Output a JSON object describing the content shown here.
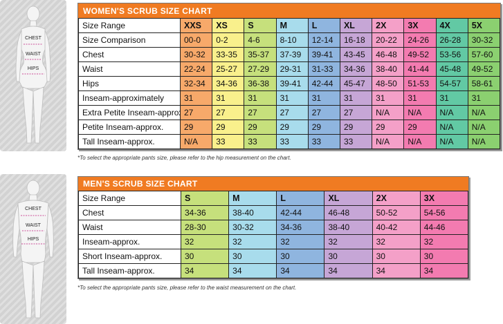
{
  "women": {
    "title": "WOMEN'S SCRUB SIZE CHART",
    "figure": {
      "chest": "CHEST",
      "waist": "WAIST",
      "hips": "HIPS"
    },
    "sizes": [
      "XXS",
      "XS",
      "S",
      "M",
      "L",
      "XL",
      "2X",
      "3X",
      "4X",
      "5X"
    ],
    "colors": [
      "#f7a96a",
      "#f9f08c",
      "#c6e07c",
      "#a8dcec",
      "#8fb5df",
      "#c6a6d6",
      "#f4a0c8",
      "#f37bb0",
      "#62c9a4",
      "#8bd070"
    ],
    "rows": [
      {
        "label": "Size Range",
        "values": [
          "XXS",
          "XS",
          "S",
          "M",
          "L",
          "XL",
          "2X",
          "3X",
          "4X",
          "5X"
        ]
      },
      {
        "label": "Size Comparison",
        "values": [
          "00-0",
          "0-2",
          "4-6",
          "8-10",
          "12-14",
          "16-18",
          "20-22",
          "24-26",
          "26-28",
          "30-32"
        ]
      },
      {
        "label": "Chest",
        "values": [
          "30-32",
          "33-35",
          "35-37",
          "37-39",
          "39-41",
          "43-45",
          "46-48",
          "49-52",
          "53-56",
          "57-60"
        ]
      },
      {
        "label": "Waist",
        "values": [
          "22-24",
          "25-27",
          "27-29",
          "29-31",
          "31-33",
          "34-36",
          "38-40",
          "41-44",
          "45-48",
          "49-52"
        ]
      },
      {
        "label": "Hips",
        "values": [
          "32-34",
          "34-36",
          "36-38",
          "39-41",
          "42-44",
          "45-47",
          "48-50",
          "51-53",
          "54-57",
          "58-61"
        ]
      },
      {
        "label": "Inseam-approximately",
        "values": [
          "31",
          "31",
          "31",
          "31",
          "31",
          "31",
          "31",
          "31",
          "31",
          "31"
        ]
      },
      {
        "label": "Extra Petite Inseam-approx.",
        "values": [
          "27",
          "27",
          "27",
          "27",
          "27",
          "27",
          "N/A",
          "N/A",
          "N/A",
          "N/A"
        ]
      },
      {
        "label": "Petite Inseam-approx.",
        "values": [
          "29",
          "29",
          "29",
          "29",
          "29",
          "29",
          "29",
          "29",
          "N/A",
          "N/A"
        ]
      },
      {
        "label": "Tall Inseam-approx.",
        "values": [
          "N/A",
          "33",
          "33",
          "33",
          "33",
          "33",
          "N/A",
          "N/A",
          "N/A",
          "N/A"
        ]
      }
    ],
    "note": "*To select the appropriate pants size, please refer to the hip measurement on the chart."
  },
  "men": {
    "title": "MEN'S SCRUB SIZE CHART",
    "figure": {
      "chest": "CHEST",
      "waist": "WAIST",
      "hips": "HIPS"
    },
    "sizes": [
      "S",
      "M",
      "L",
      "XL",
      "2X",
      "3X"
    ],
    "colors": [
      "#c6e07c",
      "#a8dcec",
      "#8fb5df",
      "#c6a6d6",
      "#f4a0c8",
      "#f37bb0"
    ],
    "rows": [
      {
        "label": "Size Range",
        "values": [
          "S",
          "M",
          "L",
          "XL",
          "2X",
          "3X"
        ]
      },
      {
        "label": "Chest",
        "values": [
          "34-36",
          "38-40",
          "42-44",
          "46-48",
          "50-52",
          "54-56"
        ]
      },
      {
        "label": "Waist",
        "values": [
          "28-30",
          "30-32",
          "34-36",
          "38-40",
          "40-42",
          "44-46"
        ]
      },
      {
        "label": "Inseam-approx.",
        "values": [
          "32",
          "32",
          "32",
          "32",
          "32",
          "32"
        ]
      },
      {
        "label": "Short Inseam-approx.",
        "values": [
          "30",
          "30",
          "30",
          "30",
          "30",
          "30"
        ]
      },
      {
        "label": "Tall Inseam-approx.",
        "values": [
          "34",
          "34",
          "34",
          "34",
          "34",
          "34"
        ]
      }
    ],
    "note": "*To select the appropriate pants size, please refer to the waist measurement on the chart."
  }
}
